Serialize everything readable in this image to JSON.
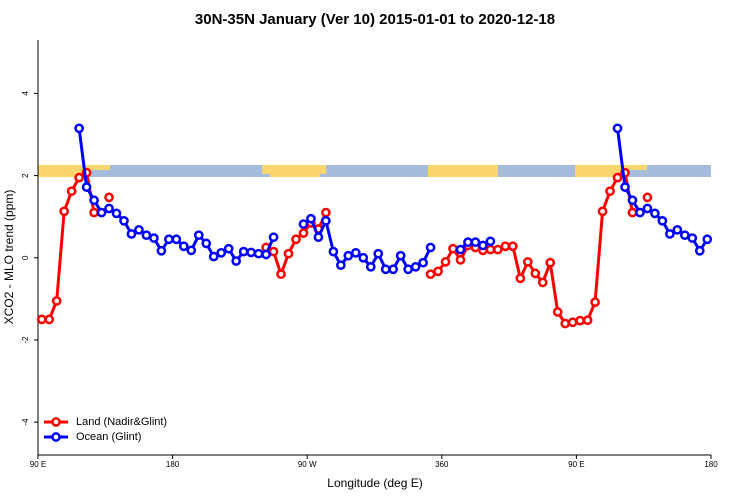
{
  "chart_data": {
    "type": "line",
    "title": "30N-35N January (Ver 10)   2015-01-01 to 2020-12-18",
    "x_label": "Longitude (deg E)",
    "y_label": "XCO2 - MLO trend (ppm)",
    "x": [
      92.5,
      97.5,
      102.5,
      107.5,
      112.5,
      117.5,
      122.5,
      127.5,
      132.5,
      137.5,
      142.5,
      147.5,
      152.5,
      157.5,
      162.5,
      167.5,
      172.5,
      177.5,
      182.5,
      187.5,
      192.5,
      197.5,
      202.5,
      207.5,
      212.5,
      217.5,
      222.5,
      227.5,
      232.5,
      237.5,
      242.5,
      247.5,
      252.5,
      257.5,
      262.5,
      267.5,
      272.5,
      277.5,
      282.5,
      287.5,
      292.5,
      297.5,
      302.5,
      307.5,
      312.5,
      317.5,
      322.5,
      327.5,
      332.5,
      337.5,
      342.5,
      347.5,
      352.5,
      357.5,
      362.5,
      367.5,
      372.5,
      377.5,
      382.5,
      387.5,
      392.5,
      397.5,
      402.5,
      407.5,
      412.5,
      417.5,
      422.5,
      427.5,
      432.5,
      437.5,
      442.5,
      447.5,
      452.5,
      457.5,
      462.5,
      467.5,
      472.5,
      477.5,
      482.5,
      487.5,
      492.5,
      497.5,
      502.5,
      507.5,
      512.5,
      517.5,
      522.5,
      527.5,
      532.5,
      537.5
    ],
    "series": [
      {
        "name": "Land (Nadir&Glint)",
        "color": "#ff0000",
        "values": [
          -1.5,
          -1.5,
          -1.05,
          1.13,
          1.62,
          1.95,
          2.07,
          1.1,
          null,
          1.47,
          null,
          null,
          null,
          null,
          null,
          null,
          null,
          null,
          null,
          null,
          null,
          null,
          null,
          null,
          null,
          null,
          null,
          null,
          null,
          null,
          0.25,
          0.15,
          -0.4,
          0.1,
          0.45,
          0.6,
          0.85,
          0.7,
          1.1,
          null,
          null,
          null,
          null,
          null,
          null,
          null,
          null,
          null,
          null,
          null,
          null,
          null,
          -0.4,
          -0.33,
          -0.1,
          0.22,
          -0.05,
          0.3,
          0.25,
          0.18,
          0.2,
          0.2,
          0.28,
          0.28,
          -0.5,
          -0.1,
          -0.38,
          -0.6,
          -0.12,
          -1.32,
          -1.6,
          -1.57,
          -1.53,
          -1.52,
          -1.08,
          1.13,
          1.62,
          1.95,
          2.07,
          1.1,
          null,
          1.47,
          null,
          null,
          null,
          null,
          null,
          null,
          null,
          null
        ]
      },
      {
        "name": "Ocean (Glint)",
        "color": "#0000ff",
        "values": [
          null,
          null,
          null,
          null,
          null,
          3.15,
          1.72,
          1.4,
          1.1,
          1.2,
          1.08,
          0.9,
          0.58,
          0.68,
          0.55,
          0.48,
          0.17,
          0.45,
          0.45,
          0.28,
          0.18,
          0.55,
          0.35,
          0.03,
          0.12,
          0.22,
          -0.08,
          0.15,
          0.13,
          0.1,
          0.08,
          0.5,
          null,
          null,
          null,
          0.82,
          0.95,
          0.5,
          0.9,
          0.15,
          -0.18,
          0.05,
          0.12,
          0,
          -0.22,
          0.1,
          -0.28,
          -0.28,
          0.05,
          -0.28,
          -0.22,
          -0.12,
          0.25,
          null,
          null,
          null,
          0.2,
          0.38,
          0.38,
          0.3,
          0.4,
          null,
          null,
          null,
          null,
          null,
          null,
          null,
          null,
          null,
          null,
          null,
          null,
          null,
          null,
          null,
          null,
          3.15,
          1.72,
          1.4,
          1.1,
          1.2,
          1.08,
          0.9,
          0.58,
          0.68,
          0.55,
          0.48,
          0.17,
          0.45
        ]
      }
    ],
    "xlim": [
      90,
      540
    ],
    "xticks": [
      {
        "value": 90,
        "label": "90 E"
      },
      180,
      {
        "value": 270,
        "label": "90 W"
      },
      360,
      {
        "value": 450,
        "label": "90 E"
      },
      {
        "value": 540,
        "label": "180"
      }
    ],
    "ylim": [
      -4.8,
      5.3
    ],
    "yticks": [
      -4,
      -2,
      0,
      2,
      4
    ],
    "legend": "bottom-left"
  }
}
